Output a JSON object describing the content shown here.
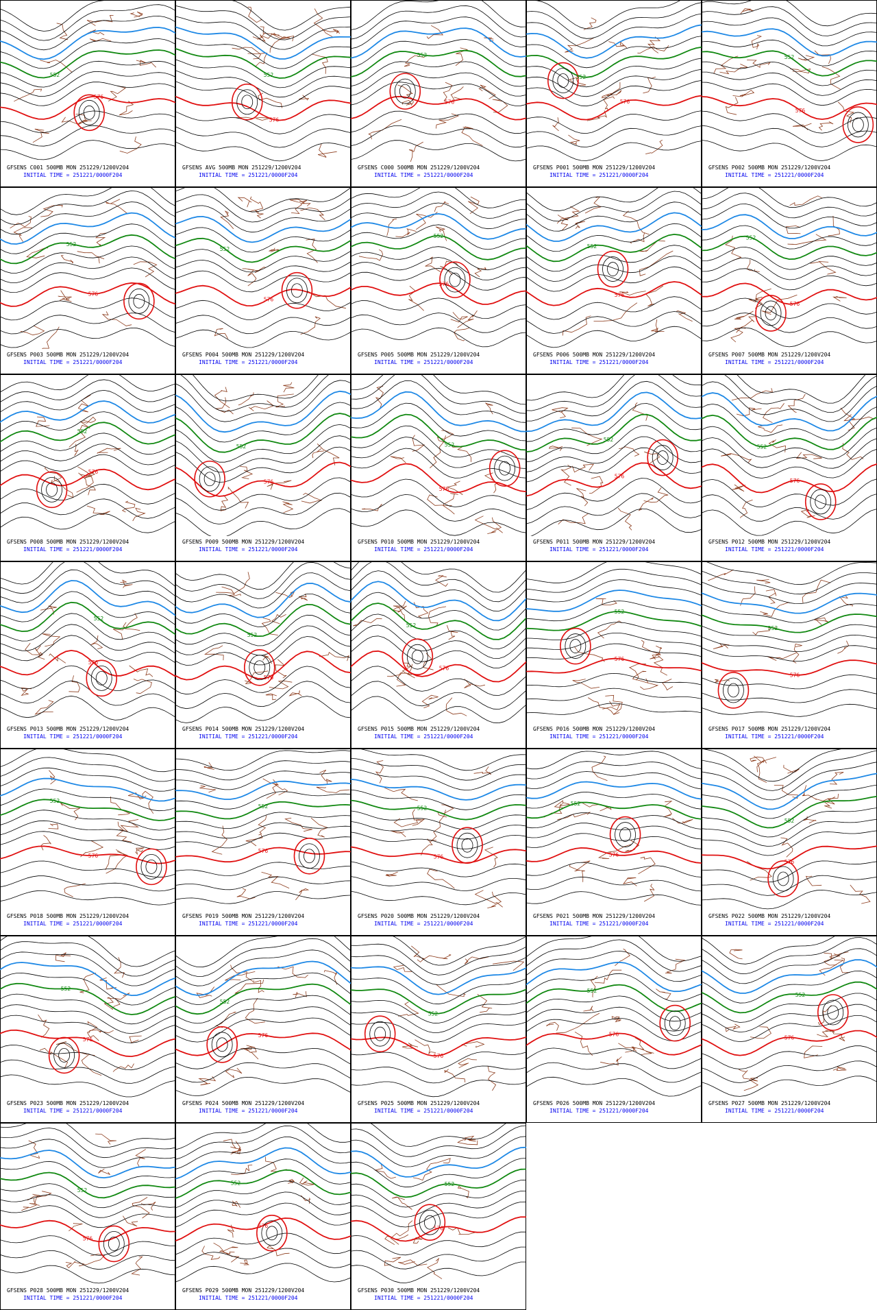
{
  "panels": [
    {
      "title": "GFSENS C001 500MB MON 251229/1200V204",
      "init": "INITIAL TIME = 251221/0000F204",
      "contours": [
        "552",
        "576"
      ]
    },
    {
      "title": "GFSENS AVG 500MB MON 251229/1200V204",
      "init": "INITIAL TIME = 251221/0000F204",
      "contours": [
        "552",
        "576"
      ]
    },
    {
      "title": "GFSENS C000 500MB MON 251229/1200V204",
      "init": "INITIAL TIME = 251221/0000F204",
      "contours": [
        "552",
        "576"
      ]
    },
    {
      "title": "GFSENS P001 500MB MON 251229/1200V204",
      "init": "INITIAL TIME = 251221/0000F204",
      "contours": [
        "552",
        "576"
      ]
    },
    {
      "title": "GFSENS P002 500MB MON 251229/1200V204",
      "init": "INITIAL TIME = 251221/0000F204",
      "contours": [
        "552",
        "576"
      ]
    },
    {
      "title": "GFSENS P003 500MB MON 251229/1200V204",
      "init": "INITIAL TIME = 251221/0000F204",
      "contours": [
        "552",
        "576"
      ]
    },
    {
      "title": "GFSENS P004 500MB MON 251229/1200V204",
      "init": "INITIAL TIME = 251221/0000F204",
      "contours": [
        "552",
        "576"
      ]
    },
    {
      "title": "GFSENS P005 500MB MON 251229/1200V204",
      "init": "INITIAL TIME = 251221/0000F204",
      "contours": [
        "552",
        "576"
      ]
    },
    {
      "title": "GFSENS P006 500MB MON 251229/1200V204",
      "init": "INITIAL TIME = 251221/0000F204",
      "contours": [
        "552",
        "576"
      ]
    },
    {
      "title": "GFSENS P007 500MB MON 251229/1200V204",
      "init": "INITIAL TIME = 251221/0000F204",
      "contours": [
        "552",
        "576"
      ]
    },
    {
      "title": "GFSENS P008 500MB MON 251229/1200V204",
      "init": "INITIAL TIME = 251221/0000F204",
      "contours": [
        "552",
        "576"
      ]
    },
    {
      "title": "GFSENS P009 500MB MON 251229/1200V204",
      "init": "INITIAL TIME = 251221/0000F204",
      "contours": [
        "552",
        "576"
      ]
    },
    {
      "title": "GFSENS P010 500MB MON 251229/1200V204",
      "init": "INITIAL TIME = 251221/0000F204",
      "contours": [
        "552",
        "576"
      ]
    },
    {
      "title": "GFSENS P011 500MB MON 251229/1200V204",
      "init": "INITIAL TIME = 251221/0000F204",
      "contours": [
        "552",
        "576"
      ]
    },
    {
      "title": "GFSENS P012 500MB MON 251229/1200V204",
      "init": "INITIAL TIME = 251221/0000F204",
      "contours": [
        "552",
        "576"
      ]
    },
    {
      "title": "GFSENS P013 500MB MON 251229/1200V204",
      "init": "INITIAL TIME = 251221/0000F204",
      "contours": [
        "552",
        "576"
      ]
    },
    {
      "title": "GFSENS P014 500MB MON 251229/1200V204",
      "init": "INITIAL TIME = 251221/0000F204",
      "contours": [
        "552",
        "576"
      ]
    },
    {
      "title": "GFSENS P015 500MB MON 251229/1200V204",
      "init": "INITIAL TIME = 251221/0000F204",
      "contours": [
        "552",
        "576"
      ]
    },
    {
      "title": "GFSENS P016 500MB MON 251229/1200V204",
      "init": "INITIAL TIME = 251221/0000F204",
      "contours": [
        "552",
        "576"
      ]
    },
    {
      "title": "GFSENS P017 500MB MON 251229/1200V204",
      "init": "INITIAL TIME = 251221/0000F204",
      "contours": [
        "552",
        "576"
      ]
    },
    {
      "title": "GFSENS P018 500MB MON 251229/1200V204",
      "init": "INITIAL TIME = 251221/0000F204",
      "contours": [
        "552",
        "576"
      ]
    },
    {
      "title": "GFSENS P019 500MB MON 251229/1200V204",
      "init": "INITIAL TIME = 251221/0000F204",
      "contours": [
        "552",
        "576"
      ]
    },
    {
      "title": "GFSENS P020 500MB MON 251229/1200V204",
      "init": "INITIAL TIME = 251221/0000F204",
      "contours": [
        "552",
        "576"
      ]
    },
    {
      "title": "GFSENS P021 500MB MON 251229/1200V204",
      "init": "INITIAL TIME = 251221/0000F204",
      "contours": [
        "552",
        "576"
      ]
    },
    {
      "title": "GFSENS P022 500MB MON 251229/1200V204",
      "init": "INITIAL TIME = 251221/0000F204",
      "contours": [
        "552",
        "576"
      ]
    },
    {
      "title": "GFSENS P023 500MB MON 251229/1200V204",
      "init": "INITIAL TIME = 251221/0000F204",
      "contours": [
        "552",
        "576"
      ]
    },
    {
      "title": "GFSENS P024 500MB MON 251229/1200V204",
      "init": "INITIAL TIME = 251221/0000F204",
      "contours": [
        "552",
        "576"
      ]
    },
    {
      "title": "GFSENS P025 500MB MON 251229/1200V204",
      "init": "INITIAL TIME = 251221/0000F204",
      "contours": [
        "552",
        "576"
      ]
    },
    {
      "title": "GFSENS P026 500MB MON 251229/1200V204",
      "init": "INITIAL TIME = 251221/0000F204",
      "contours": [
        "552",
        "576"
      ]
    },
    {
      "title": "GFSENS P027 500MB MON 251229/1200V204",
      "init": "INITIAL TIME = 251221/0000F204",
      "contours": [
        "552",
        "576"
      ]
    },
    {
      "title": "GFSENS P028 500MB MON 251229/1200V204",
      "init": "INITIAL TIME = 251221/0000F204",
      "contours": [
        "552",
        "576"
      ]
    },
    {
      "title": "GFSENS P029 500MB MON 251229/1200V204",
      "init": "INITIAL TIME = 251221/0000F204",
      "contours": [
        "552",
        "576"
      ]
    },
    {
      "title": "GFSENS P030 500MB MON 251229/1200V204",
      "init": "INITIAL TIME = 251221/0000F204",
      "contours": [
        "552",
        "576"
      ]
    }
  ]
}
